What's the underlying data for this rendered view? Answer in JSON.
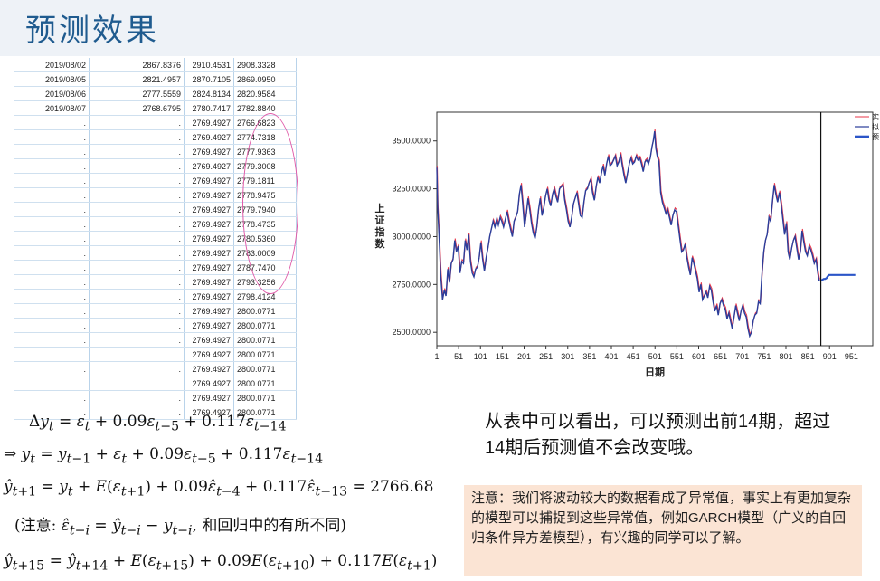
{
  "page": {
    "title": "预测效果"
  },
  "table": {
    "rows": [
      [
        "2019/08/02",
        "2867.8376",
        "2910.4531",
        "2908.3328"
      ],
      [
        "2019/08/05",
        "2821.4957",
        "2870.7105",
        "2869.0950"
      ],
      [
        "2019/08/06",
        "2777.5559",
        "2824.8134",
        "2820.9584"
      ],
      [
        "2019/08/07",
        "2768.6795",
        "2780.7417",
        "2782.8840"
      ],
      [
        ".",
        ".",
        "2769.4927",
        "2766.6823"
      ],
      [
        ".",
        ".",
        "2769.4927",
        "2774.7318"
      ],
      [
        ".",
        ".",
        "2769.4927",
        "2777.9363"
      ],
      [
        ".",
        ".",
        "2769.4927",
        "2779.3008"
      ],
      [
        ".",
        ".",
        "2769.4927",
        "2779.1811"
      ],
      [
        ".",
        ".",
        "2769.4927",
        "2778.9475"
      ],
      [
        ".",
        ".",
        "2769.4927",
        "2779.7940"
      ],
      [
        ".",
        ".",
        "2769.4927",
        "2778.4735"
      ],
      [
        ".",
        ".",
        "2769.4927",
        "2780.5360"
      ],
      [
        ".",
        ".",
        "2769.4927",
        "2783.0009"
      ],
      [
        ".",
        ".",
        "2769.4927",
        "2787.7470"
      ],
      [
        ".",
        ".",
        "2769.4927",
        "2793.3256"
      ],
      [
        ".",
        ".",
        "2769.4927",
        "2798.4124"
      ],
      [
        ".",
        ".",
        "2769.4927",
        "2800.0771"
      ],
      [
        ".",
        ".",
        "2769.4927",
        "2800.0771"
      ],
      [
        ".",
        ".",
        "2769.4927",
        "2800.0771"
      ],
      [
        ".",
        ".",
        "2769.4927",
        "2800.0771"
      ],
      [
        ".",
        ".",
        "2769.4927",
        "2800.0771"
      ],
      [
        ".",
        ".",
        "2769.4927",
        "2800.0771"
      ],
      [
        ".",
        ".",
        "2769.4927",
        "2800.0771"
      ],
      [
        ".",
        ".",
        "2769.4927",
        "2800.0771"
      ]
    ]
  },
  "chart_data": {
    "type": "line",
    "xlabel": "日期",
    "ylabel": "上证指数",
    "x_ticks": [
      "1",
      "51",
      "101",
      "151",
      "201",
      "251",
      "301",
      "351",
      "401",
      "451",
      "501",
      "551",
      "601",
      "651",
      "701",
      "751",
      "801",
      "851",
      "901",
      "951"
    ],
    "y_ticks": [
      "2500.0000",
      "2750.0000",
      "3000.0000",
      "3250.0000",
      "3500.0000"
    ],
    "xlim": [
      1,
      1000
    ],
    "ylim": [
      2430,
      3650
    ],
    "divider_x": 881,
    "legend": [
      "实",
      "拟",
      "预"
    ],
    "colors": {
      "actual": "#e8374a",
      "fitted": "#2a3d9a",
      "forecast": "#2b55c8"
    },
    "series_actual": [
      [
        1,
        3360
      ],
      [
        3,
        3150
      ],
      [
        6,
        3010
      ],
      [
        10,
        2800
      ],
      [
        14,
        2670
      ],
      [
        18,
        2720
      ],
      [
        22,
        2690
      ],
      [
        26,
        2830
      ],
      [
        30,
        2760
      ],
      [
        34,
        2860
      ],
      [
        38,
        2880
      ],
      [
        42,
        2980
      ],
      [
        46,
        2920
      ],
      [
        50,
        2950
      ],
      [
        54,
        2810
      ],
      [
        58,
        2870
      ],
      [
        62,
        2860
      ],
      [
        66,
        2980
      ],
      [
        70,
        2930
      ],
      [
        74,
        3010
      ],
      [
        78,
        2870
      ],
      [
        82,
        2810
      ],
      [
        86,
        2790
      ],
      [
        90,
        2830
      ],
      [
        94,
        2840
      ],
      [
        98,
        2890
      ],
      [
        102,
        2970
      ],
      [
        106,
        2880
      ],
      [
        110,
        2820
      ],
      [
        114,
        2890
      ],
      [
        118,
        2940
      ],
      [
        122,
        3000
      ],
      [
        126,
        3040
      ],
      [
        130,
        3080
      ],
      [
        134,
        3050
      ],
      [
        138,
        3090
      ],
      [
        142,
        3060
      ],
      [
        146,
        3100
      ],
      [
        150,
        3080
      ],
      [
        154,
        3050
      ],
      [
        158,
        3090
      ],
      [
        162,
        3130
      ],
      [
        166,
        3080
      ],
      [
        170,
        3040
      ],
      [
        174,
        3000
      ],
      [
        178,
        3080
      ],
      [
        182,
        3100
      ],
      [
        186,
        3130
      ],
      [
        190,
        3220
      ],
      [
        194,
        3270
      ],
      [
        198,
        3170
      ],
      [
        202,
        3050
      ],
      [
        206,
        3120
      ],
      [
        210,
        3200
      ],
      [
        214,
        3140
      ],
      [
        218,
        3070
      ],
      [
        222,
        3020
      ],
      [
        226,
        2990
      ],
      [
        230,
        3050
      ],
      [
        234,
        3140
      ],
      [
        238,
        3200
      ],
      [
        242,
        3110
      ],
      [
        246,
        3150
      ],
      [
        250,
        3210
      ],
      [
        254,
        3250
      ],
      [
        258,
        3190
      ],
      [
        262,
        3160
      ],
      [
        266,
        3220
      ],
      [
        270,
        3250
      ],
      [
        274,
        3210
      ],
      [
        278,
        3180
      ],
      [
        282,
        3250
      ],
      [
        286,
        3260
      ],
      [
        290,
        3270
      ],
      [
        294,
        3190
      ],
      [
        298,
        3140
      ],
      [
        302,
        3080
      ],
      [
        306,
        3050
      ],
      [
        310,
        3100
      ],
      [
        314,
        3170
      ],
      [
        318,
        3200
      ],
      [
        322,
        3230
      ],
      [
        326,
        3170
      ],
      [
        330,
        3110
      ],
      [
        334,
        3100
      ],
      [
        338,
        3180
      ],
      [
        342,
        3240
      ],
      [
        346,
        3250
      ],
      [
        350,
        3280
      ],
      [
        354,
        3300
      ],
      [
        358,
        3230
      ],
      [
        362,
        3190
      ],
      [
        366,
        3260
      ],
      [
        370,
        3310
      ],
      [
        374,
        3280
      ],
      [
        378,
        3330
      ],
      [
        382,
        3370
      ],
      [
        386,
        3320
      ],
      [
        390,
        3380
      ],
      [
        394,
        3420
      ],
      [
        398,
        3370
      ],
      [
        402,
        3380
      ],
      [
        406,
        3400
      ],
      [
        410,
        3420
      ],
      [
        414,
        3370
      ],
      [
        418,
        3390
      ],
      [
        422,
        3430
      ],
      [
        426,
        3370
      ],
      [
        430,
        3320
      ],
      [
        434,
        3280
      ],
      [
        438,
        3330
      ],
      [
        442,
        3380
      ],
      [
        446,
        3410
      ],
      [
        450,
        3380
      ],
      [
        454,
        3390
      ],
      [
        458,
        3420
      ],
      [
        462,
        3400
      ],
      [
        466,
        3410
      ],
      [
        470,
        3380
      ],
      [
        474,
        3340
      ],
      [
        478,
        3390
      ],
      [
        482,
        3400
      ],
      [
        486,
        3380
      ],
      [
        490,
        3410
      ],
      [
        494,
        3470
      ],
      [
        497,
        3500
      ],
      [
        500,
        3550
      ],
      [
        503,
        3460
      ],
      [
        506,
        3420
      ],
      [
        510,
        3390
      ],
      [
        514,
        3230
      ],
      [
        518,
        3180
      ],
      [
        522,
        3150
      ],
      [
        526,
        3120
      ],
      [
        530,
        3140
      ],
      [
        534,
        3100
      ],
      [
        538,
        3060
      ],
      [
        542,
        3110
      ],
      [
        546,
        3140
      ],
      [
        550,
        3130
      ],
      [
        554,
        3060
      ],
      [
        558,
        2990
      ],
      [
        562,
        2920
      ],
      [
        566,
        2930
      ],
      [
        570,
        2960
      ],
      [
        574,
        2890
      ],
      [
        578,
        2840
      ],
      [
        582,
        2800
      ],
      [
        586,
        2890
      ],
      [
        590,
        2860
      ],
      [
        594,
        2820
      ],
      [
        598,
        2780
      ],
      [
        602,
        2710
      ],
      [
        606,
        2750
      ],
      [
        610,
        2670
      ],
      [
        614,
        2690
      ],
      [
        618,
        2710
      ],
      [
        622,
        2680
      ],
      [
        626,
        2740
      ],
      [
        630,
        2720
      ],
      [
        634,
        2660
      ],
      [
        638,
        2610
      ],
      [
        642,
        2640
      ],
      [
        646,
        2590
      ],
      [
        650,
        2650
      ],
      [
        654,
        2670
      ],
      [
        658,
        2640
      ],
      [
        662,
        2620
      ],
      [
        666,
        2570
      ],
      [
        670,
        2600
      ],
      [
        674,
        2560
      ],
      [
        678,
        2520
      ],
      [
        682,
        2580
      ],
      [
        686,
        2640
      ],
      [
        690,
        2600
      ],
      [
        694,
        2560
      ],
      [
        698,
        2610
      ],
      [
        702,
        2640
      ],
      [
        706,
        2600
      ],
      [
        710,
        2580
      ],
      [
        714,
        2520
      ],
      [
        718,
        2480
      ],
      [
        722,
        2500
      ],
      [
        726,
        2560
      ],
      [
        730,
        2590
      ],
      [
        734,
        2600
      ],
      [
        738,
        2660
      ],
      [
        742,
        2650
      ],
      [
        746,
        2800
      ],
      [
        750,
        2920
      ],
      [
        754,
        2980
      ],
      [
        758,
        3010
      ],
      [
        762,
        3100
      ],
      [
        766,
        3080
      ],
      [
        770,
        3180
      ],
      [
        774,
        3270
      ],
      [
        778,
        3220
      ],
      [
        782,
        3180
      ],
      [
        786,
        3230
      ],
      [
        790,
        3170
      ],
      [
        794,
        3090
      ],
      [
        798,
        3010
      ],
      [
        802,
        3070
      ],
      [
        806,
        2920
      ],
      [
        810,
        2880
      ],
      [
        814,
        2940
      ],
      [
        818,
        2980
      ],
      [
        822,
        3000
      ],
      [
        826,
        2940
      ],
      [
        830,
        2880
      ],
      [
        834,
        2920
      ],
      [
        838,
        3030
      ],
      [
        842,
        2970
      ],
      [
        846,
        2920
      ],
      [
        850,
        2900
      ],
      [
        854,
        2950
      ],
      [
        858,
        2930
      ],
      [
        862,
        2900
      ],
      [
        866,
        2860
      ],
      [
        870,
        2880
      ],
      [
        874,
        2810
      ],
      [
        877,
        2770
      ],
      [
        881,
        2768
      ]
    ],
    "series_forecast": [
      [
        882,
        2769
      ],
      [
        885,
        2775
      ],
      [
        888,
        2779
      ],
      [
        891,
        2779
      ],
      [
        894,
        2783
      ],
      [
        897,
        2793
      ],
      [
        900,
        2800
      ],
      [
        960,
        2800
      ]
    ]
  },
  "formulas": {
    "f1": "Δy_t = ε_t + 0.09ε_{t−5} + 0.117ε_{t−14}",
    "f2": "⇒ y_t = y_{t−1} + ε_t + 0.09ε_{t−5} + 0.117ε_{t−14}",
    "f3": "ŷ_{t+1} = y_t + E(ε_{t+1}) + 0.09ε̂_{t−4} + 0.117ε̂_{t−13} = 2766.68",
    "f4": "(注意: ε̂_{t−i} = ŷ_{t−i} − y_{t−i}, 和回归中的有所不同)",
    "f5": "ŷ_{t+15} = ŷ_{t+14} + E(ε_{t+15}) + 0.09E(ε_{t+10}) + 0.117E(ε_{t+1})"
  },
  "remark": "从表中可以看出，可以预测出前14期，超过14期后预测值不会改变哦。",
  "note": "注意：我们将波动较大的数据看成了异常值，事实上有更加复杂的模型可以捕捉到这些异常值，例如GARCH模型（广义的自回归条件异方差模型），有兴趣的同学可以了解。"
}
